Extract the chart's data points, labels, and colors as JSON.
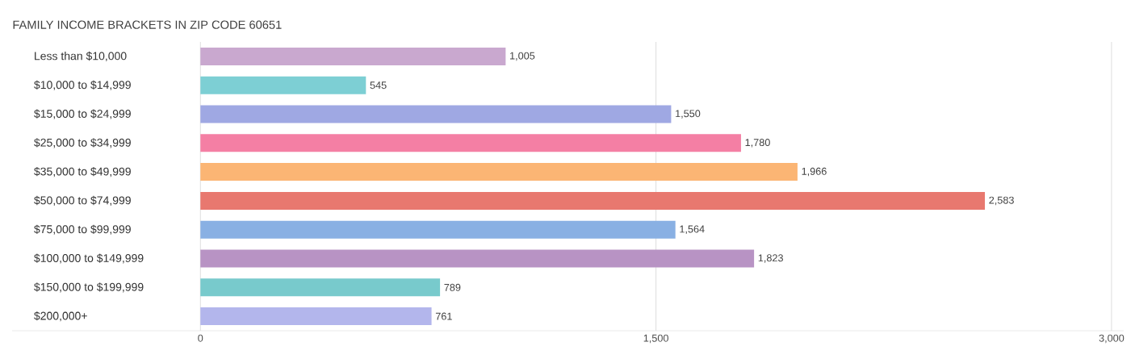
{
  "chart_data": {
    "type": "bar",
    "orientation": "horizontal",
    "title": "FAMILY INCOME BRACKETS IN ZIP CODE 60651",
    "categories": [
      "Less than $10,000",
      "$10,000 to $14,999",
      "$15,000 to $24,999",
      "$25,000 to $34,999",
      "$35,000 to $49,999",
      "$50,000 to $74,999",
      "$75,000 to $99,999",
      "$100,000 to $149,999",
      "$150,000 to $199,999",
      "$200,000+"
    ],
    "values": [
      1005,
      545,
      1550,
      1780,
      1966,
      2583,
      1564,
      1823,
      789,
      761
    ],
    "colors": [
      "#c9a8cf",
      "#7dcfd4",
      "#9fa8e3",
      "#f47fa4",
      "#fbb574",
      "#e8786f",
      "#89b0e3",
      "#b893c4",
      "#78cacc",
      "#b3b6ec"
    ],
    "xlim": [
      -620,
      3040
    ],
    "xticks": [
      0,
      {
        "value": 1500,
        "label": "1,500"
      },
      {
        "value": 3000,
        "label": "3,000"
      }
    ],
    "value_labels": [
      "1,005",
      "545",
      "1,550",
      "1,780",
      "1,966",
      "2,583",
      "1,564",
      "1,823",
      "789",
      "761"
    ],
    "grid": "x"
  }
}
